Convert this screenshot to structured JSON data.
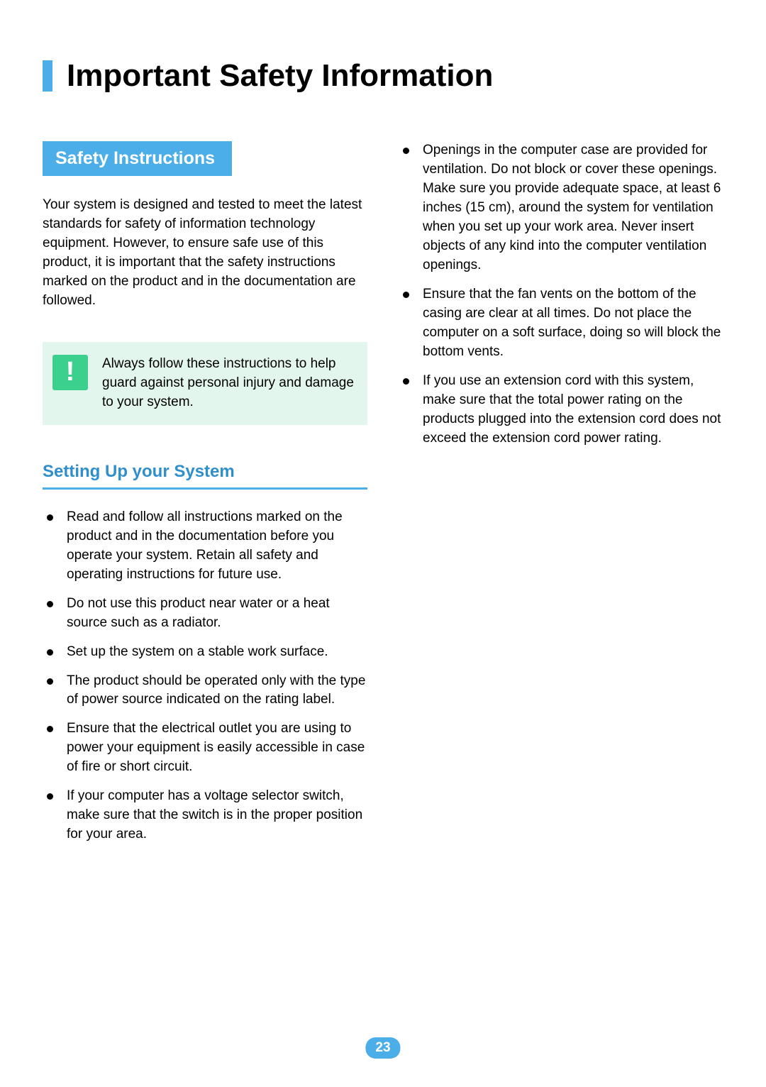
{
  "page": {
    "title": "Important Safety Information",
    "number": "23",
    "colors": {
      "accent": "#4baee8",
      "callout_bg": "#e3f6ed",
      "callout_icon_bg": "#3cd08e",
      "subheading_text": "#2e8fcc",
      "text": "#000000",
      "background": "#ffffff"
    }
  },
  "section": {
    "heading": "Safety Instructions",
    "intro": "Your system is designed and tested to meet the latest standards for safety of information technology equipment. However, to ensure safe use of this product, it is important that the safety instructions marked on the product and in the documentation are followed.",
    "callout": {
      "icon_glyph": "!",
      "text": "Always follow these instructions to help guard against personal injury and damage to your system."
    },
    "subheading": "Setting Up your System",
    "bullets_left": [
      "Read and follow all instructions marked on the product and in the documentation before you operate your system. Retain all safety and operating instructions for future use.",
      "Do not use this product near water or a heat source such as a radiator.",
      "Set up the system on a stable work surface.",
      "The product should be operated only with the type of power source indicated on the rating label.",
      "Ensure that the electrical outlet you are using to power your equipment is easily accessible in case of fire or short circuit.",
      "If your computer has a voltage selector switch, make sure that the switch is in the proper position for your area."
    ],
    "bullets_right": [
      "Openings in the computer case are provided for ventilation. Do not block or cover these openings. Make sure you provide adequate space, at least 6 inches (15 cm), around the system for ventilation when you set up your work area. Never insert objects of any kind into the computer ventilation openings.",
      "Ensure that the fan vents on the bottom of the casing are clear at all times. Do not place the computer on a soft surface, doing so will block the bottom vents.",
      "If you use an extension cord with this system, make sure that the total power rating on the products plugged into the extension cord does not exceed the extension cord power rating."
    ]
  }
}
